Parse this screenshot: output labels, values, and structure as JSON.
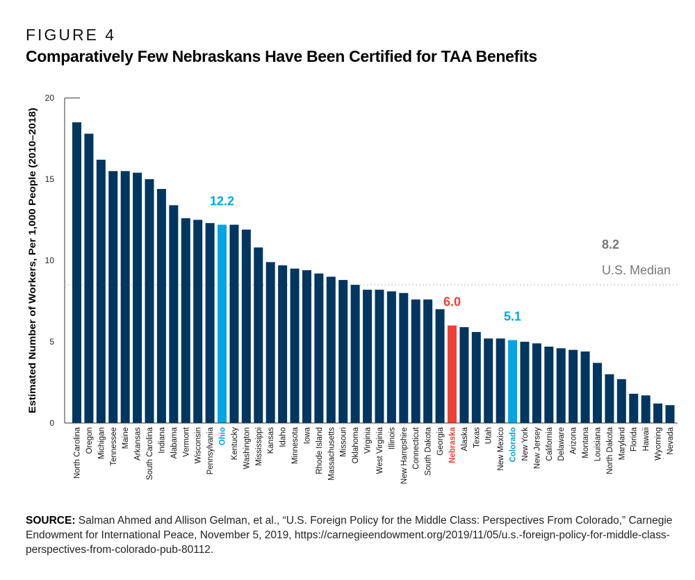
{
  "figure_label": "FIGURE 4",
  "title": "Comparatively Few Nebraskans Have Been Certified for TAA Benefits",
  "source": {
    "label": "SOURCE:",
    "text": "Salman Ahmed and Allison Gelman, et al., “U.S. Foreign Policy for the Middle Class: Perspectives From Colorado,” Carnegie Endowment for International Peace, November 5, 2019, https://carnegieendowment.org/2019/11/05/u.s.-foreign-policy-for-middle-class-perspectives-from-colorado-pub-80112."
  },
  "colors": {
    "default": "#00365f",
    "ohio": "#00a6e2",
    "colorado": "#00a6e2",
    "nebraska": "#ee4036",
    "median": "#777777"
  },
  "chart_data": {
    "type": "bar",
    "ylabel": "Estimated Number of Workers, Per 1,000 People (2010–2018)",
    "ylim": [
      0,
      20
    ],
    "yticks": [
      0,
      5,
      10,
      15,
      20
    ],
    "grid": false,
    "categories": [
      "North Carolina",
      "Oregon",
      "Michigan",
      "Tennessee",
      "Maine",
      "Arkansas",
      "South Carolina",
      "Indiana",
      "Alabama",
      "Vermont",
      "Wisconsin",
      "Pennsylvania",
      "Ohio",
      "Kentucky",
      "Washington",
      "Mississippi",
      "Kansas",
      "Idaho",
      "Minnesota",
      "Iowa",
      "Rhode Island",
      "Massachusetts",
      "Missouri",
      "Oklahoma",
      "Virginia",
      "West Virginia",
      "Illinois",
      "New Hampshire",
      "Connecticut",
      "South Dakota",
      "Georgia",
      "Nebraska",
      "Alaska",
      "Texas",
      "Utah",
      "New Mexico",
      "Colorado",
      "New York",
      "New Jersey",
      "California",
      "Delaware",
      "Arizona",
      "Montana",
      "Louisiana",
      "North Dakota",
      "Maryland",
      "Florida",
      "Hawaii",
      "Wyoming",
      "Nevada"
    ],
    "values": [
      18.5,
      17.8,
      16.2,
      15.5,
      15.5,
      15.4,
      15.0,
      14.4,
      13.4,
      12.6,
      12.5,
      12.3,
      12.2,
      12.2,
      11.9,
      10.8,
      9.9,
      9.7,
      9.5,
      9.4,
      9.2,
      9.0,
      8.8,
      8.5,
      8.2,
      8.2,
      8.1,
      8.0,
      7.6,
      7.6,
      7.0,
      6.0,
      5.9,
      5.6,
      5.2,
      5.2,
      5.1,
      5.0,
      4.9,
      4.7,
      4.6,
      4.5,
      4.4,
      3.7,
      3.0,
      2.7,
      1.8,
      1.7,
      1.2,
      1.1
    ],
    "highlights": [
      {
        "category": "Ohio",
        "label": "12.2",
        "color_key": "ohio"
      },
      {
        "category": "Nebraska",
        "label": "6.0",
        "color_key": "nebraska"
      },
      {
        "category": "Colorado",
        "label": "5.1",
        "color_key": "colorado"
      }
    ],
    "reference_line": {
      "value": 8.2,
      "value_label": "8.2",
      "label": "U.S. Median",
      "style": "dotted"
    }
  }
}
